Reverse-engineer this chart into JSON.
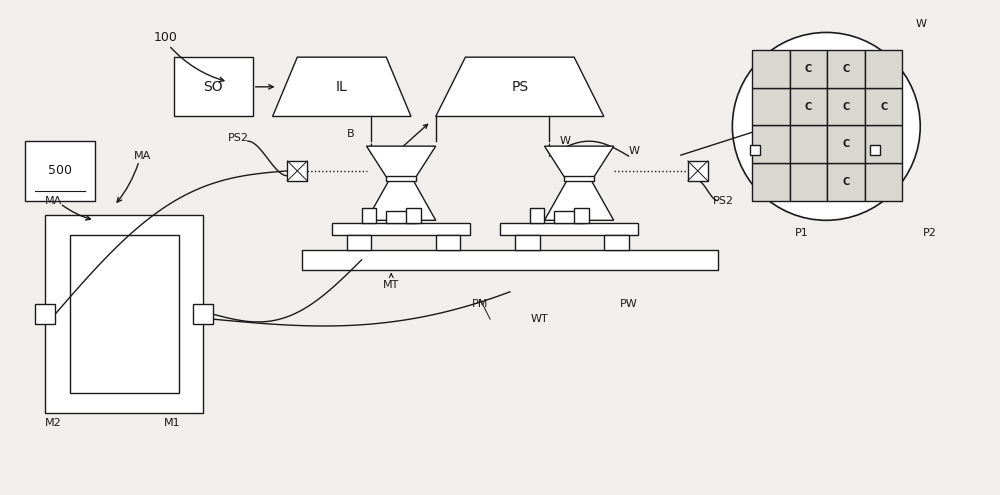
{
  "bg_color": "#f0efeb",
  "line_color": "#1a1a1a",
  "figsize": [
    10.0,
    4.95
  ],
  "dpi": 100,
  "xlim": [
    0,
    100
  ],
  "ylim": [
    0,
    49.5
  ]
}
